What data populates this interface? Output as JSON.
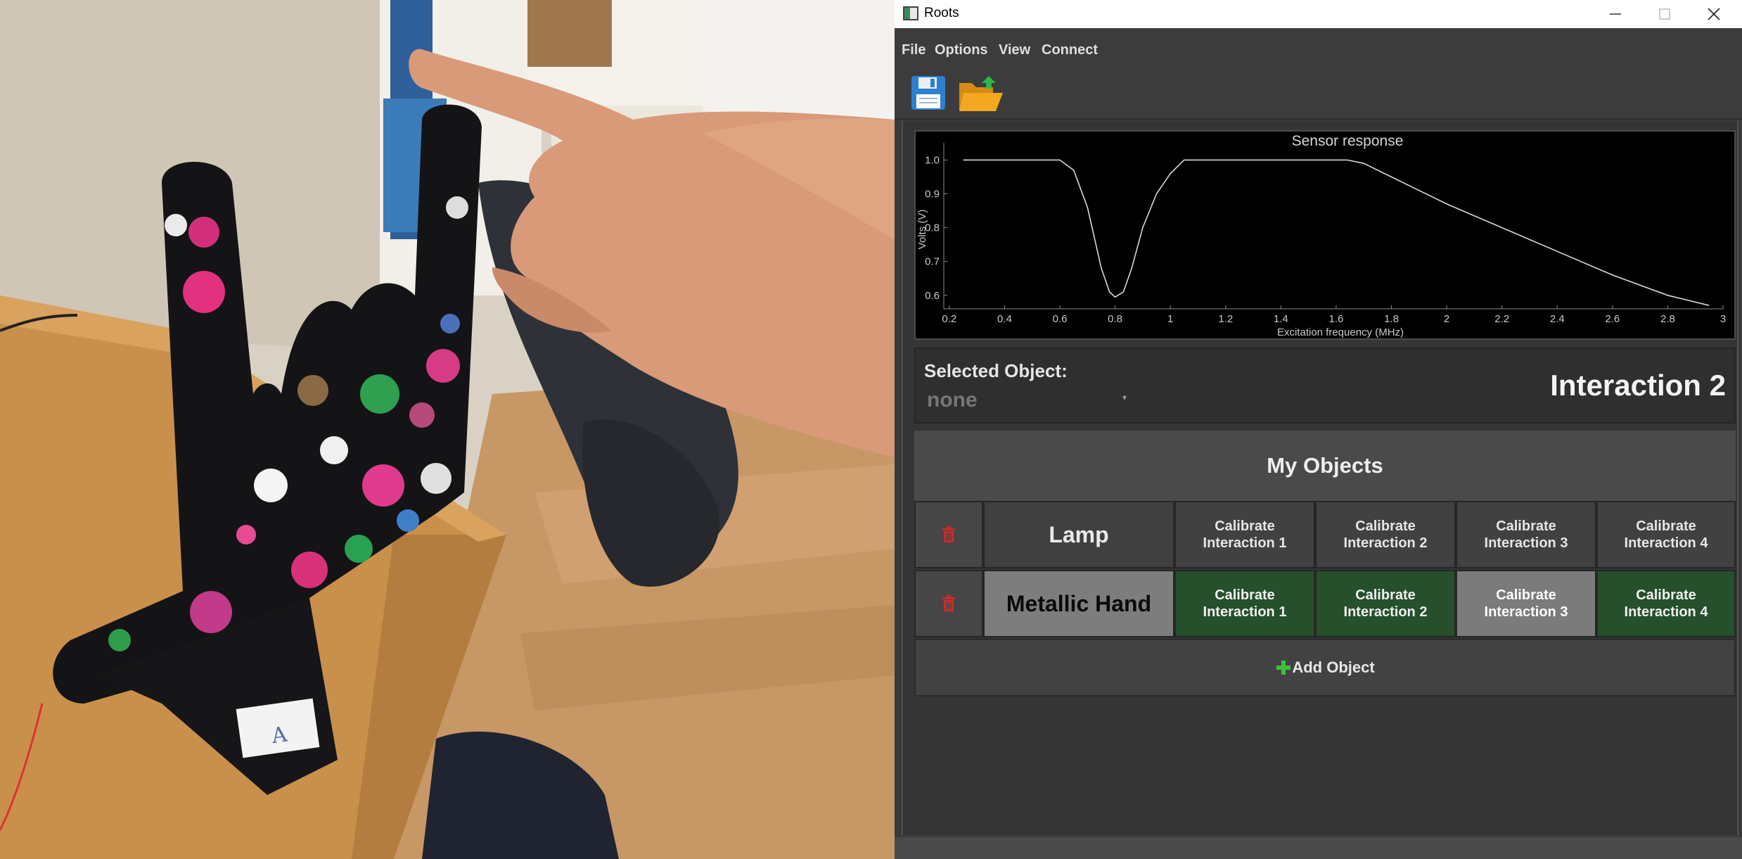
{
  "window": {
    "title": "Roots"
  },
  "menu": {
    "file": "File",
    "options": "Options",
    "view": "View",
    "connect": "Connect"
  },
  "toolbar": {
    "save_icon": "floppy-disk-icon",
    "open_icon": "open-folder-icon"
  },
  "chart_data": {
    "type": "line",
    "title": "Sensor response",
    "xlabel": "Excitation frequency (MHz)",
    "ylabel": "Volts (V)",
    "xlim": [
      0.18,
      3.0
    ],
    "ylim": [
      0.56,
      1.03
    ],
    "xticks": [
      "0.2",
      "0.4",
      "0.6",
      "0.8",
      "1",
      "1.2",
      "1.4",
      "1.6",
      "1.8",
      "2",
      "2.2",
      "2.4",
      "2.6",
      "2.8",
      "3"
    ],
    "yticks": [
      "0.6",
      "0.7",
      "0.8",
      "0.9",
      "1.0"
    ],
    "series": [
      {
        "name": "Sensor response",
        "color": "#d8d8d8",
        "x": [
          0.25,
          0.4,
          0.5,
          0.6,
          0.65,
          0.7,
          0.75,
          0.78,
          0.8,
          0.83,
          0.86,
          0.9,
          0.95,
          1.0,
          1.05,
          1.1,
          1.2,
          1.4,
          1.6,
          1.64,
          1.7,
          1.8,
          1.9,
          2.0,
          2.2,
          2.4,
          2.6,
          2.8,
          2.95
        ],
        "y": [
          1.0,
          1.0,
          1.0,
          1.0,
          0.97,
          0.86,
          0.68,
          0.61,
          0.595,
          0.61,
          0.68,
          0.8,
          0.9,
          0.96,
          1.0,
          1.0,
          1.0,
          1.0,
          1.0,
          1.0,
          0.99,
          0.95,
          0.91,
          0.87,
          0.8,
          0.73,
          0.66,
          0.6,
          0.57
        ]
      }
    ]
  },
  "selected": {
    "label": "Selected Object:",
    "value": "none",
    "interaction": "Interaction 2"
  },
  "objects": {
    "header": "My Objects",
    "rows": [
      {
        "name": "Lamp",
        "cal1": "Calibrate\nInteraction 1",
        "cal2": "Calibrate\nInteraction 2",
        "cal3": "Calibrate\nInteraction 3",
        "cal4": "Calibrate\nInteraction 4"
      },
      {
        "name": "Metallic Hand",
        "cal1": "Calibrate\nInteraction 1",
        "cal2": "Calibrate\nInteraction 2",
        "cal3": "Calibrate\nInteraction 3",
        "cal4": "Calibrate\nInteraction 4"
      }
    ],
    "add_label": "Add Object"
  },
  "colors": {
    "delete": "#cc2a2a",
    "add": "#3fbf3f",
    "calibrated": "#264f2b",
    "selected": "#7b7b7b"
  }
}
